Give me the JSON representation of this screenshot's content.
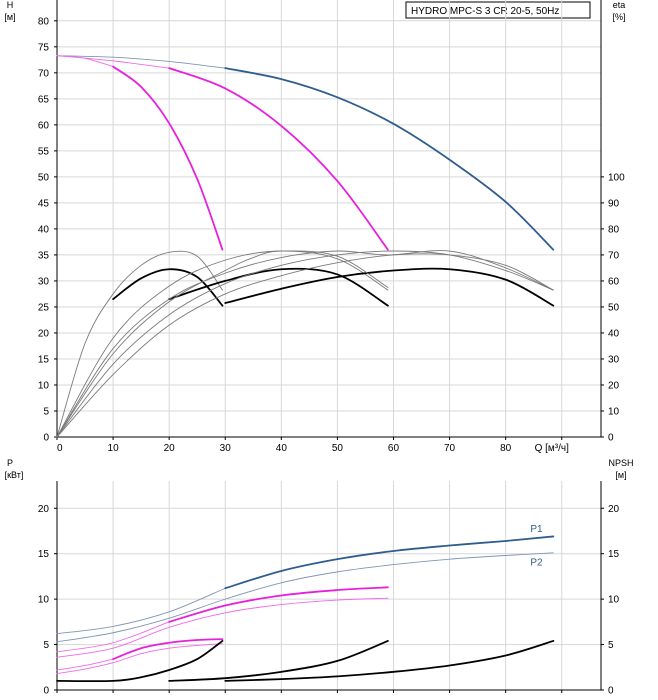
{
  "colors": {
    "grid": "#d7d7d7",
    "axis": "#000000",
    "blue": "#2f5d8e",
    "blue_thin": "#7f96b5",
    "magenta": "#e620dc",
    "magenta_thin": "#ee6ae8",
    "black": "#000000",
    "gray": "#7a7a7a"
  },
  "chart_data": [
    {
      "type": "line",
      "title": "HYDRO MPC-S 3 CR 20-5, 50Hz",
      "ylabel": "H",
      "yunit": "[м]",
      "ylabel_right": "eta",
      "yunit_right": "[%]",
      "xlabel": "Q [м³/ч]",
      "xlim": [
        0,
        97
      ],
      "ylim": [
        0,
        84
      ],
      "ylim_right": [
        0,
        168
      ],
      "x_ticks": [
        0,
        10,
        20,
        30,
        40,
        50,
        60,
        70,
        80,
        90
      ],
      "x_tick_labels": [
        "0",
        "10",
        "20",
        "30",
        "40",
        "50",
        "60",
        "70",
        "80",
        "Q [м³/ч]"
      ],
      "y_ticks": [
        0,
        5,
        10,
        15,
        20,
        25,
        30,
        35,
        40,
        45,
        50,
        55,
        60,
        65,
        70,
        75,
        80
      ],
      "y_ticks_right": [
        0,
        10,
        20,
        30,
        40,
        50,
        60,
        70,
        80,
        90,
        100
      ],
      "grid": true,
      "series": [
        {
          "axis": "left",
          "style": "blue_thin",
          "points": [
            [
              0,
              73.3
            ],
            [
              10,
              73.0
            ],
            [
              20,
              72.2
            ],
            [
              30,
              70.9
            ]
          ]
        },
        {
          "axis": "left",
          "style": "blue",
          "points": [
            [
              30,
              70.9
            ],
            [
              40,
              68.8
            ],
            [
              50,
              65.3
            ],
            [
              60,
              60.2
            ],
            [
              70,
              53.3
            ],
            [
              80,
              45.2
            ],
            [
              88.5,
              36.0
            ]
          ]
        },
        {
          "axis": "left",
          "style": "magenta_thin",
          "points": [
            [
              0,
              73.3
            ],
            [
              10,
              72.3
            ],
            [
              20,
              70.9
            ]
          ]
        },
        {
          "axis": "left",
          "style": "magenta",
          "points": [
            [
              20,
              70.9
            ],
            [
              30,
              67.0
            ],
            [
              40,
              59.8
            ],
            [
              50,
              49.2
            ],
            [
              59,
              36.0
            ]
          ]
        },
        {
          "axis": "left",
          "style": "magenta_thin",
          "points": [
            [
              0,
              73.3
            ],
            [
              5,
              72.8
            ],
            [
              10,
              71.2
            ]
          ]
        },
        {
          "axis": "left",
          "style": "magenta",
          "points": [
            [
              10,
              71.2
            ],
            [
              15,
              67.3
            ],
            [
              20,
              60.3
            ],
            [
              25,
              49.6
            ],
            [
              29.5,
              36.0
            ]
          ]
        },
        {
          "axis": "right",
          "style": "gray",
          "points": [
            [
              0,
              0
            ],
            [
              5,
              36
            ],
            [
              10,
              55
            ],
            [
              15,
              66
            ],
            [
              20,
              71
            ],
            [
              25,
              69.5
            ],
            [
              29.5,
              56.5
            ]
          ]
        },
        {
          "axis": "right",
          "style": "black",
          "points": [
            [
              10,
              53
            ],
            [
              15,
              61
            ],
            [
              20,
              64.5
            ],
            [
              25,
              61.5
            ],
            [
              29.5,
              50.5
            ]
          ]
        },
        {
          "axis": "right",
          "style": "gray",
          "points": [
            [
              0,
              0
            ],
            [
              10,
              38
            ],
            [
              20,
              58
            ],
            [
              30,
              68
            ],
            [
              40,
              71.5
            ],
            [
              50,
              68.5
            ],
            [
              59,
              56.5
            ]
          ]
        },
        {
          "axis": "right",
          "style": "black",
          "points": [
            [
              20,
              53
            ],
            [
              30,
              60
            ],
            [
              40,
              64.5
            ],
            [
              50,
              62.5
            ],
            [
              59,
              50.5
            ]
          ]
        },
        {
          "axis": "right",
          "style": "gray",
          "points": [
            [
              0,
              0
            ],
            [
              10,
              28
            ],
            [
              20,
              47
            ],
            [
              30,
              59
            ],
            [
              40,
              66
            ],
            [
              50,
              70
            ],
            [
              60,
              71.5
            ],
            [
              70,
              70
            ],
            [
              80,
              64
            ],
            [
              88.5,
              56.5
            ]
          ]
        },
        {
          "axis": "right",
          "style": "black",
          "points": [
            [
              30,
              51.5
            ],
            [
              40,
              57
            ],
            [
              50,
              61.5
            ],
            [
              60,
              64
            ],
            [
              70,
              64.5
            ],
            [
              80,
              60.5
            ],
            [
              88.5,
              50.5
            ]
          ]
        },
        {
          "axis": "right",
          "style": "gray",
          "points": [
            [
              0,
              0
            ],
            [
              10,
              34
            ],
            [
              20,
              53
            ],
            [
              30,
              63
            ],
            [
              40,
              69
            ],
            [
              50,
              71.5
            ],
            [
              59,
              70
            ],
            [
              70,
              71.5
            ],
            [
              80,
              65
            ],
            [
              88.5,
              56.5
            ]
          ]
        },
        {
          "axis": "right",
          "style": "gray",
          "points": [
            [
              0,
              0
            ],
            [
              10,
              32
            ],
            [
              20,
              52
            ],
            [
              30,
              64
            ],
            [
              35,
              69
            ],
            [
              40,
              71.5
            ],
            [
              50,
              69.5
            ],
            [
              59,
              57.5
            ]
          ]
        },
        {
          "axis": "right",
          "style": "gray",
          "points": [
            [
              0,
              0
            ],
            [
              10,
              24
            ],
            [
              20,
              43
            ],
            [
              30,
              55
            ],
            [
              40,
              62
            ],
            [
              50,
              67
            ],
            [
              60,
              70
            ],
            [
              70,
              70
            ],
            [
              80,
              66
            ],
            [
              88.5,
              56.5
            ]
          ]
        }
      ]
    },
    {
      "type": "line",
      "ylabel": "P",
      "yunit": "[кВт]",
      "ylabel_right": "NPSH",
      "yunit_right": "[м]",
      "xlim": [
        0,
        97
      ],
      "ylim": [
        0,
        23
      ],
      "ylim_right": [
        0,
        23
      ],
      "x_ticks": [
        0,
        10,
        20,
        30,
        40,
        50,
        60,
        70,
        80,
        90
      ],
      "y_ticks": [
        0,
        5,
        10,
        15,
        20
      ],
      "y_ticks_right": [
        0,
        5,
        10,
        15,
        20
      ],
      "grid": true,
      "curve_labels": [
        {
          "text": "P1",
          "x": 85.5,
          "y": 17.4,
          "style": "blue"
        },
        {
          "text": "P2",
          "x": 85.5,
          "y": 13.7,
          "style": "blue"
        }
      ],
      "series": [
        {
          "name": "P1",
          "axis": "left",
          "style": "blue_thin",
          "points": [
            [
              0,
              6.2
            ],
            [
              10,
              7.0
            ],
            [
              20,
              8.6
            ],
            [
              30,
              11.2
            ]
          ]
        },
        {
          "name": "P1",
          "axis": "left",
          "style": "blue",
          "points": [
            [
              30,
              11.2
            ],
            [
              40,
              13.1
            ],
            [
              50,
              14.4
            ],
            [
              60,
              15.3
            ],
            [
              70,
              15.9
            ],
            [
              80,
              16.4
            ],
            [
              88.5,
              16.9
            ]
          ]
        },
        {
          "name": "P2",
          "axis": "left",
          "style": "blue_thin",
          "points": [
            [
              0,
              5.3
            ],
            [
              10,
              6.3
            ],
            [
              20,
              7.9
            ],
            [
              30,
              10.0
            ],
            [
              40,
              11.8
            ],
            [
              50,
              13.0
            ],
            [
              60,
              13.8
            ],
            [
              70,
              14.4
            ],
            [
              80,
              14.8
            ],
            [
              88.5,
              15.1
            ]
          ]
        },
        {
          "axis": "left",
          "style": "magenta_thin",
          "points": [
            [
              0,
              4.2
            ],
            [
              10,
              5.2
            ],
            [
              20,
              7.5
            ]
          ]
        },
        {
          "axis": "left",
          "style": "magenta",
          "points": [
            [
              20,
              7.5
            ],
            [
              30,
              9.3
            ],
            [
              40,
              10.4
            ],
            [
              50,
              11.0
            ],
            [
              59,
              11.3
            ]
          ]
        },
        {
          "axis": "left",
          "style": "magenta_thin",
          "points": [
            [
              0,
              3.6
            ],
            [
              10,
              4.6
            ],
            [
              20,
              6.9
            ],
            [
              30,
              8.5
            ],
            [
              40,
              9.4
            ],
            [
              50,
              9.9
            ],
            [
              59,
              10.1
            ]
          ]
        },
        {
          "axis": "left",
          "style": "magenta_thin",
          "points": [
            [
              0,
              2.2
            ],
            [
              5,
              2.7
            ],
            [
              10,
              3.4
            ]
          ]
        },
        {
          "axis": "left",
          "style": "magenta",
          "points": [
            [
              10,
              3.4
            ],
            [
              15,
              4.6
            ],
            [
              20,
              5.2
            ],
            [
              25,
              5.5
            ],
            [
              29.5,
              5.6
            ]
          ]
        },
        {
          "axis": "left",
          "style": "magenta_thin",
          "points": [
            [
              0,
              1.8
            ],
            [
              5,
              2.3
            ],
            [
              10,
              3.0
            ],
            [
              15,
              4.0
            ],
            [
              20,
              4.6
            ],
            [
              25,
              4.9
            ],
            [
              29.5,
              5.1
            ]
          ]
        },
        {
          "name": "NPSH",
          "axis": "right",
          "style": "black",
          "points": [
            [
              0,
              1.0
            ],
            [
              10,
              1.0
            ],
            [
              15,
              1.4
            ],
            [
              20,
              2.2
            ],
            [
              25,
              3.4
            ],
            [
              29.5,
              5.4
            ]
          ]
        },
        {
          "name": "NPSH",
          "axis": "right",
          "style": "black",
          "points": [
            [
              20,
              1.0
            ],
            [
              30,
              1.3
            ],
            [
              40,
              2.0
            ],
            [
              50,
              3.2
            ],
            [
              59,
              5.4
            ]
          ]
        },
        {
          "name": "NPSH",
          "axis": "right",
          "style": "black",
          "points": [
            [
              30,
              1.0
            ],
            [
              40,
              1.2
            ],
            [
              50,
              1.5
            ],
            [
              60,
              2.0
            ],
            [
              70,
              2.7
            ],
            [
              80,
              3.8
            ],
            [
              88.5,
              5.4
            ]
          ]
        }
      ]
    }
  ]
}
